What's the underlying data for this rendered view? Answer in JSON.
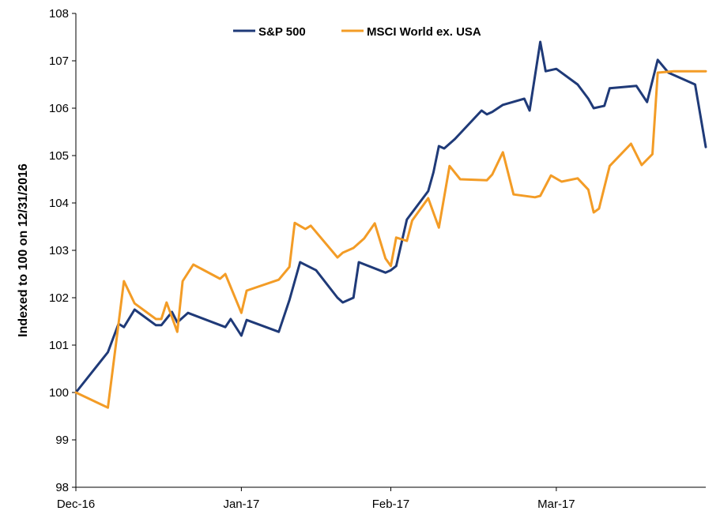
{
  "chart_data": {
    "type": "line",
    "title": "",
    "xlabel": "",
    "ylabel": "Indexed to 100 on 12/31/2016",
    "ylim": [
      98,
      108
    ],
    "y_ticks": [
      "98",
      "99",
      "100",
      "101",
      "102",
      "103",
      "104",
      "105",
      "106",
      "107",
      "108"
    ],
    "x_ticks": [
      {
        "label": "Dec-16",
        "date": "2016-12-31"
      },
      {
        "label": "Jan-17",
        "date": "2017-01-31"
      },
      {
        "label": "Feb-17",
        "date": "2017-02-28"
      },
      {
        "label": "Mar-17",
        "date": "2017-03-31"
      }
    ],
    "xlim": [
      "2016-12-31",
      "2017-04-28"
    ],
    "grid": false,
    "legend": "top-center",
    "series": [
      {
        "name": "S&P 500",
        "color": "#1f3a78",
        "points": [
          [
            "2016-12-31",
            100.0
          ],
          [
            "2017-01-06",
            100.85
          ],
          [
            "2017-01-08",
            101.45
          ],
          [
            "2017-01-09",
            101.38
          ],
          [
            "2017-01-11",
            101.75
          ],
          [
            "2017-01-15",
            101.42
          ],
          [
            "2017-01-16",
            101.42
          ],
          [
            "2017-01-18",
            101.7
          ],
          [
            "2017-01-19",
            101.48
          ],
          [
            "2017-01-21",
            101.68
          ],
          [
            "2017-01-28",
            101.38
          ],
          [
            "2017-01-29",
            101.55
          ],
          [
            "2017-01-31",
            101.2
          ],
          [
            "2017-02-01",
            101.53
          ],
          [
            "2017-02-07",
            101.28
          ],
          [
            "2017-02-09",
            101.95
          ],
          [
            "2017-02-11",
            102.75
          ],
          [
            "2017-02-14",
            102.58
          ],
          [
            "2017-02-18",
            102.0
          ],
          [
            "2017-02-19",
            101.9
          ],
          [
            "2017-02-21",
            102.0
          ],
          [
            "2017-02-22",
            102.75
          ],
          [
            "2017-02-27",
            102.53
          ],
          [
            "2017-02-28",
            102.58
          ],
          [
            "2017-03-01",
            102.67
          ],
          [
            "2017-03-03",
            103.65
          ],
          [
            "2017-03-07",
            104.25
          ],
          [
            "2017-03-08",
            104.65
          ],
          [
            "2017-03-09",
            105.2
          ],
          [
            "2017-03-10",
            105.15
          ],
          [
            "2017-03-12",
            105.35
          ],
          [
            "2017-03-17",
            105.95
          ],
          [
            "2017-03-18",
            105.87
          ],
          [
            "2017-03-19",
            105.92
          ],
          [
            "2017-03-21",
            106.07
          ],
          [
            "2017-03-25",
            106.2
          ],
          [
            "2017-03-26",
            105.95
          ],
          [
            "2017-03-28",
            107.4
          ],
          [
            "2017-03-29",
            106.78
          ],
          [
            "2017-03-31",
            106.83
          ],
          [
            "2017-04-04",
            106.5
          ],
          [
            "2017-04-06",
            106.2
          ],
          [
            "2017-04-07",
            106.0
          ],
          [
            "2017-04-09",
            106.05
          ],
          [
            "2017-04-10",
            106.42
          ],
          [
            "2017-04-15",
            106.47
          ],
          [
            "2017-04-17",
            106.13
          ],
          [
            "2017-04-19",
            107.02
          ],
          [
            "2017-04-21",
            106.75
          ],
          [
            "2017-04-26",
            106.5
          ],
          [
            "2017-04-28",
            105.18
          ]
        ]
      },
      {
        "name": "MSCI World ex. USA",
        "color": "#f39c26",
        "points": [
          [
            "2016-12-31",
            100.0
          ],
          [
            "2017-01-06",
            99.68
          ],
          [
            "2017-01-09",
            102.35
          ],
          [
            "2017-01-11",
            101.88
          ],
          [
            "2017-01-15",
            101.55
          ],
          [
            "2017-01-16",
            101.55
          ],
          [
            "2017-01-17",
            101.9
          ],
          [
            "2017-01-19",
            101.28
          ],
          [
            "2017-01-20",
            102.35
          ],
          [
            "2017-01-22",
            102.7
          ],
          [
            "2017-01-27",
            102.4
          ],
          [
            "2017-01-28",
            102.5
          ],
          [
            "2017-01-31",
            101.68
          ],
          [
            "2017-02-01",
            102.15
          ],
          [
            "2017-02-07",
            102.38
          ],
          [
            "2017-02-09",
            102.65
          ],
          [
            "2017-02-10",
            103.58
          ],
          [
            "2017-02-12",
            103.45
          ],
          [
            "2017-02-13",
            103.52
          ],
          [
            "2017-02-18",
            102.85
          ],
          [
            "2017-02-19",
            102.95
          ],
          [
            "2017-02-21",
            103.05
          ],
          [
            "2017-02-23",
            103.25
          ],
          [
            "2017-02-25",
            103.57
          ],
          [
            "2017-02-27",
            102.83
          ],
          [
            "2017-02-28",
            102.67
          ],
          [
            "2017-03-01",
            103.27
          ],
          [
            "2017-03-03",
            103.2
          ],
          [
            "2017-03-04",
            103.63
          ],
          [
            "2017-03-07",
            104.1
          ],
          [
            "2017-03-09",
            103.48
          ],
          [
            "2017-03-11",
            104.78
          ],
          [
            "2017-03-13",
            104.5
          ],
          [
            "2017-03-18",
            104.48
          ],
          [
            "2017-03-19",
            104.6
          ],
          [
            "2017-03-21",
            105.07
          ],
          [
            "2017-03-23",
            104.18
          ],
          [
            "2017-03-27",
            104.12
          ],
          [
            "2017-03-28",
            104.15
          ],
          [
            "2017-03-30",
            104.58
          ],
          [
            "2017-04-01",
            104.45
          ],
          [
            "2017-04-04",
            104.52
          ],
          [
            "2017-04-06",
            104.28
          ],
          [
            "2017-04-07",
            103.8
          ],
          [
            "2017-04-08",
            103.88
          ],
          [
            "2017-04-10",
            104.78
          ],
          [
            "2017-04-14",
            105.25
          ],
          [
            "2017-04-16",
            104.8
          ],
          [
            "2017-04-18",
            105.03
          ],
          [
            "2017-04-19",
            106.75
          ],
          [
            "2017-04-22",
            106.78
          ],
          [
            "2017-04-28",
            106.78
          ]
        ]
      }
    ]
  }
}
